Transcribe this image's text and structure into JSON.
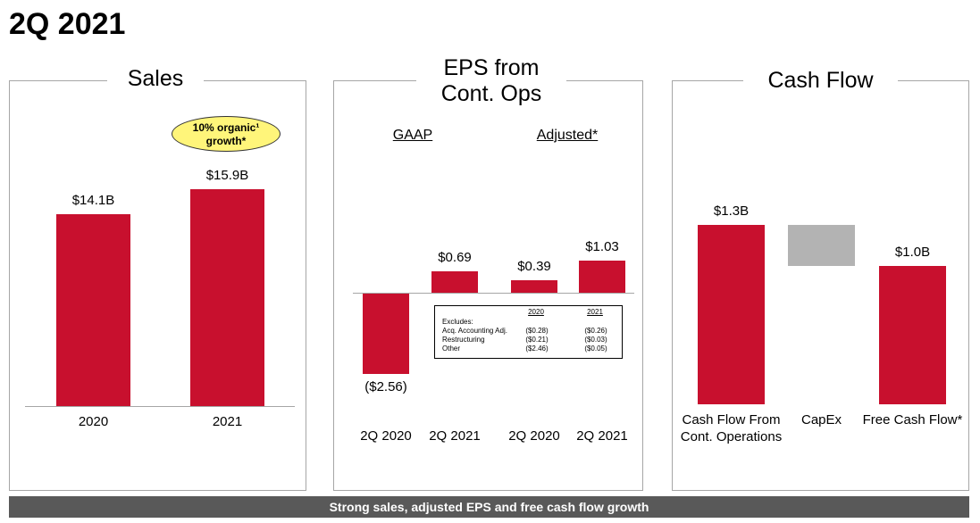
{
  "title": "2Q 2021",
  "footer": "Strong sales, adjusted EPS and free cash flow growth",
  "chart_data": [
    {
      "type": "bar",
      "title": "Sales",
      "categories": [
        "2020",
        "2021"
      ],
      "values": [
        14.1,
        15.9
      ],
      "value_labels": [
        "$14.1B",
        "$15.9B"
      ],
      "color": "#c8102e",
      "annotation": "10% organic¹ growth*"
    },
    {
      "type": "bar",
      "title": "EPS from Cont. Ops",
      "groups": [
        "GAAP",
        "Adjusted*"
      ],
      "categories": [
        "2Q 2020",
        "2Q 2021",
        "2Q 2020",
        "2Q 2021"
      ],
      "values": [
        -2.56,
        0.69,
        0.39,
        1.03
      ],
      "value_labels": [
        "($2.56)",
        "$0.69",
        "$0.39",
        "$1.03"
      ],
      "color": "#c8102e",
      "table": {
        "columns": [
          "2020",
          "2021"
        ],
        "title": "Excludes:",
        "rows": [
          {
            "label": "Acq. Accounting Adj.",
            "values": [
              "($0.28)",
              "($0.26)"
            ]
          },
          {
            "label": "Restructuring",
            "values": [
              "($0.21)",
              "($0.03)"
            ]
          },
          {
            "label": "Other",
            "values": [
              "($2.46)",
              "($0.05)"
            ]
          }
        ]
      }
    },
    {
      "type": "waterfall",
      "title": "Cash Flow",
      "categories": [
        "Cash Flow From Cont. Operations",
        "CapEx",
        "Free Cash Flow*"
      ],
      "values": [
        1.3,
        -0.3,
        1.0
      ],
      "value_labels": [
        "$1.3B",
        null,
        "$1.0B"
      ],
      "measure": [
        "absolute",
        "relative",
        "total"
      ],
      "colors": [
        "#c8102e",
        "#b3b3b3",
        "#c8102e"
      ]
    }
  ]
}
